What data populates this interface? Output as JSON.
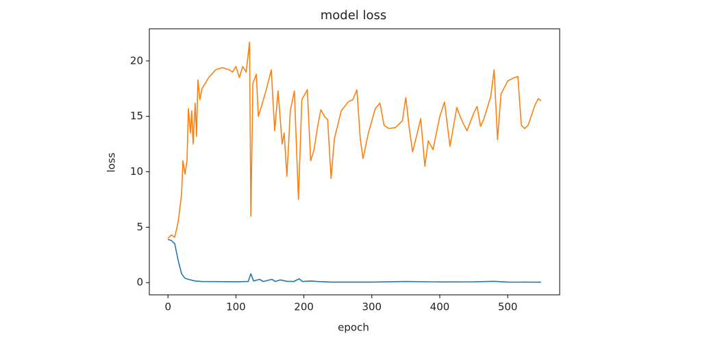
{
  "chart_data": {
    "type": "line",
    "title": "model loss",
    "x_label": "epoch",
    "y_label": "loss",
    "xlim": [
      -27.45,
      576.45
    ],
    "xticks": [
      0,
      100,
      200,
      300,
      400,
      500
    ],
    "ylim": [
      -1.1,
      22.9
    ],
    "yticks": [
      0,
      5,
      10,
      15,
      20
    ],
    "grid": false,
    "series": [
      {
        "color": "#1f77b4",
        "x": [
          0,
          5,
          10,
          15,
          20,
          25,
          30,
          40,
          50,
          100,
          118,
          122,
          126,
          135,
          140,
          153,
          158,
          165,
          175,
          185,
          193,
          198,
          210,
          220,
          240,
          300,
          350,
          400,
          450,
          480,
          500,
          549
        ],
        "values": [
          3.9,
          3.8,
          3.5,
          2,
          0.8,
          0.4,
          0.3,
          0.15,
          0.1,
          0.08,
          0.1,
          0.8,
          0.15,
          0.3,
          0.1,
          0.3,
          0.1,
          0.25,
          0.12,
          0.1,
          0.35,
          0.1,
          0.15,
          0.1,
          0.05,
          0.05,
          0.1,
          0.06,
          0.07,
          0.12,
          0.05,
          0.04
        ]
      },
      {
        "color": "#ff7f0e",
        "x": [
          0,
          5,
          10,
          15,
          20,
          22,
          25,
          28,
          30,
          33,
          35,
          37,
          40,
          42,
          44,
          47,
          50,
          60,
          70,
          80,
          90,
          95,
          100,
          105,
          110,
          115,
          120,
          122,
          125,
          130,
          133,
          138,
          145,
          152,
          157,
          162,
          168,
          171,
          175,
          180,
          186,
          192,
          197,
          205,
          210,
          215,
          220,
          225,
          230,
          235,
          240,
          245,
          255,
          265,
          272,
          278,
          283,
          287,
          295,
          305,
          312,
          318,
          325,
          335,
          345,
          350,
          355,
          360,
          367,
          372,
          378,
          383,
          390,
          400,
          407,
          415,
          425,
          430,
          435,
          440,
          450,
          455,
          460,
          465,
          475,
          480,
          485,
          490,
          500,
          510,
          515,
          520,
          525,
          530,
          540,
          545,
          549
        ],
        "values": [
          4.0,
          4.3,
          4.1,
          5.5,
          8,
          11,
          9.8,
          11,
          15.7,
          13.5,
          15.5,
          12.5,
          16.2,
          13.2,
          18.3,
          16.5,
          17.5,
          18.5,
          19.2,
          19.4,
          19.2,
          19,
          19.5,
          18.5,
          19.5,
          19,
          21.7,
          6,
          18,
          18.8,
          15,
          16,
          17.5,
          19.2,
          13.7,
          17.3,
          12.5,
          13.5,
          9.6,
          15.5,
          17.3,
          7.5,
          16.5,
          17.4,
          11,
          12,
          14,
          15.6,
          15,
          14.7,
          9.4,
          13,
          15.5,
          16.3,
          16.5,
          17.4,
          13,
          11.2,
          13.5,
          15.7,
          16.2,
          14.2,
          13.9,
          14,
          14.6,
          16.7,
          14,
          11.8,
          13.5,
          14.8,
          10.5,
          12.8,
          12,
          15,
          16.3,
          12.3,
          15.8,
          15,
          14.3,
          13.7,
          15.3,
          15.9,
          14.1,
          14.8,
          16.8,
          19.2,
          12.9,
          17,
          18.2,
          18.5,
          18.6,
          14.2,
          13.9,
          14.2,
          16,
          16.6,
          16.4
        ]
      }
    ]
  }
}
